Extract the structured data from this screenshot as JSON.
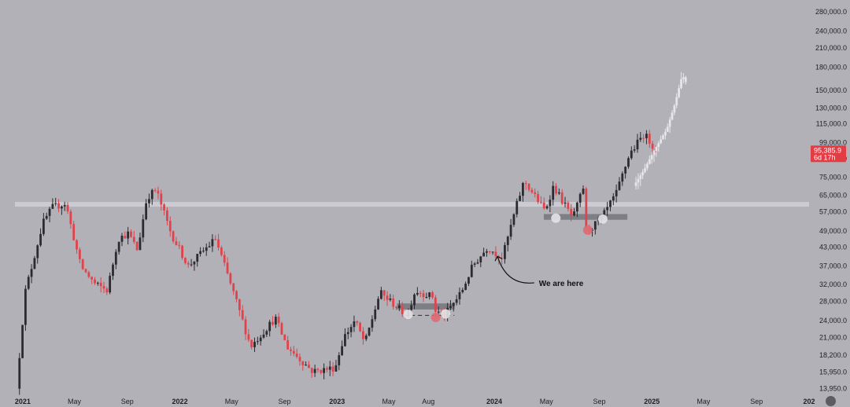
{
  "chart_data": {
    "type": "candlestick",
    "title": "",
    "xlabel": "",
    "ylabel": "",
    "y_scale": "log",
    "ylim": [
      13000,
      300000
    ],
    "xlim": [
      "2020-12-14",
      "2026-01-01"
    ],
    "grid": false,
    "y_ticks": [
      "280,000.0",
      "240,000.0",
      "210,000.0",
      "180,000.0",
      "150,000.0",
      "130,000.0",
      "115,000.0",
      "99,000.0",
      "87,000.0",
      "75,000.0",
      "65,000.0",
      "57,000.0",
      "49,000.0",
      "43,000.0",
      "37,000.0",
      "32,000.0",
      "28,000.0",
      "24,000.0",
      "21,000.0",
      "18,200.0",
      "15,950.0",
      "13,950.0"
    ],
    "x_ticks": [
      {
        "label": "2021",
        "date": "2021-01-01",
        "year": true
      },
      {
        "label": "May",
        "date": "2021-05-01",
        "year": false
      },
      {
        "label": "Sep",
        "date": "2021-09-01",
        "year": false
      },
      {
        "label": "2022",
        "date": "2022-01-01",
        "year": true
      },
      {
        "label": "May",
        "date": "2022-05-01",
        "year": false
      },
      {
        "label": "Sep",
        "date": "2022-09-01",
        "year": false
      },
      {
        "label": "2023",
        "date": "2023-01-01",
        "year": true
      },
      {
        "label": "May",
        "date": "2023-05-01",
        "year": false
      },
      {
        "label": "Aug",
        "date": "2023-08-01",
        "year": false
      },
      {
        "label": "2024",
        "date": "2024-01-01",
        "year": true
      },
      {
        "label": "May",
        "date": "2024-05-01",
        "year": false
      },
      {
        "label": "Sep",
        "date": "2024-09-01",
        "year": false
      },
      {
        "label": "2025",
        "date": "2025-01-01",
        "year": true
      },
      {
        "label": "May",
        "date": "2025-05-01",
        "year": false
      },
      {
        "label": "Sep",
        "date": "2025-09-01",
        "year": false
      },
      {
        "label": "202",
        "date": "2026-01-01",
        "year": true
      }
    ],
    "price_keypoints": [
      [
        "2020-12-21",
        13950
      ],
      [
        "2021-01-10",
        30000
      ],
      [
        "2021-02-20",
        52000
      ],
      [
        "2021-03-14",
        59000
      ],
      [
        "2021-04-14",
        61000
      ],
      [
        "2021-05-19",
        37000
      ],
      [
        "2021-06-22",
        32000
      ],
      [
        "2021-07-20",
        30500
      ],
      [
        "2021-08-14",
        46000
      ],
      [
        "2021-09-07",
        48000
      ],
      [
        "2021-09-28",
        42000
      ],
      [
        "2021-10-20",
        64000
      ],
      [
        "2021-11-10",
        68000
      ],
      [
        "2021-12-15",
        48000
      ],
      [
        "2022-01-24",
        37000
      ],
      [
        "2022-03-28",
        46000
      ],
      [
        "2022-05-12",
        29000
      ],
      [
        "2022-06-18",
        19500
      ],
      [
        "2022-08-14",
        24500
      ],
      [
        "2022-09-10",
        19500
      ],
      [
        "2022-11-09",
        16000
      ],
      [
        "2022-12-31",
        16500
      ],
      [
        "2023-01-20",
        21000
      ],
      [
        "2023-02-15",
        24000
      ],
      [
        "2023-03-10",
        20000
      ],
      [
        "2023-04-14",
        30000
      ],
      [
        "2023-05-20",
        27000
      ],
      [
        "2023-06-15",
        25000
      ],
      [
        "2023-07-05",
        30500
      ],
      [
        "2023-08-15",
        29000
      ],
      [
        "2023-08-20",
        26000
      ],
      [
        "2023-09-11",
        25000
      ],
      [
        "2023-10-20",
        30000
      ],
      [
        "2023-11-15",
        37000
      ],
      [
        "2023-12-20",
        43000
      ],
      [
        "2024-01-23",
        39500
      ],
      [
        "2024-02-28",
        62000
      ],
      [
        "2024-03-14",
        73000
      ],
      [
        "2024-05-01",
        57500
      ],
      [
        "2024-05-21",
        70000
      ],
      [
        "2024-07-05",
        54000
      ],
      [
        "2024-07-29",
        69000
      ],
      [
        "2024-08-05",
        49000
      ],
      [
        "2024-09-06",
        53000
      ],
      [
        "2024-10-14",
        66000
      ],
      [
        "2024-11-13",
        90000
      ],
      [
        "2024-12-17",
        106000
      ],
      [
        "2025-01-10",
        95385.9
      ]
    ],
    "projection_keypoints": [
      [
        "2024-11-25",
        70000
      ],
      [
        "2024-12-20",
        80000
      ],
      [
        "2025-01-10",
        92000
      ],
      [
        "2025-02-10",
        110000
      ],
      [
        "2025-03-01",
        135000
      ],
      [
        "2025-03-18",
        170000
      ],
      [
        "2025-03-25",
        160000
      ]
    ],
    "resistance_level": 60500,
    "support_zones": [
      {
        "start": "2023-05-20",
        "end": "2023-10-01",
        "low": 26200,
        "high": 27500
      },
      {
        "start": "2024-04-25",
        "end": "2024-11-05",
        "low": 53500,
        "high": 56000
      }
    ],
    "liquidity_line": {
      "start": "2023-06-05",
      "end": "2023-09-30",
      "price": 25000
    },
    "markers": [
      {
        "date": "2023-06-15",
        "price": 25200,
        "color": "white"
      },
      {
        "date": "2023-08-18",
        "price": 24600,
        "color": "red"
      },
      {
        "date": "2023-09-10",
        "price": 25300,
        "color": "white"
      },
      {
        "date": "2024-05-23",
        "price": 54200,
        "color": "white"
      },
      {
        "date": "2024-08-05",
        "price": 49300,
        "color": "red"
      },
      {
        "date": "2024-09-09",
        "price": 53800,
        "color": "white"
      }
    ],
    "annotation": {
      "text": "We are here",
      "arrow_from": [
        "2024-02-08",
        32000
      ],
      "arrow_to": [
        "2024-01-01",
        40000
      ]
    },
    "current_price": {
      "value": "95,385.9",
      "countdown": "6d 17h",
      "price": 95385.9
    },
    "colors": {
      "background": "#b1b1b7",
      "up_candle": "#2b2b30",
      "down_candle": "#e0434c",
      "projection": "#e8e8ec",
      "resistance": "#d4d4da",
      "support_zone": "#76767c",
      "marker_white": "#e4e4e8",
      "marker_red": "#de6b74",
      "price_tag": "#e43c45"
    }
  }
}
